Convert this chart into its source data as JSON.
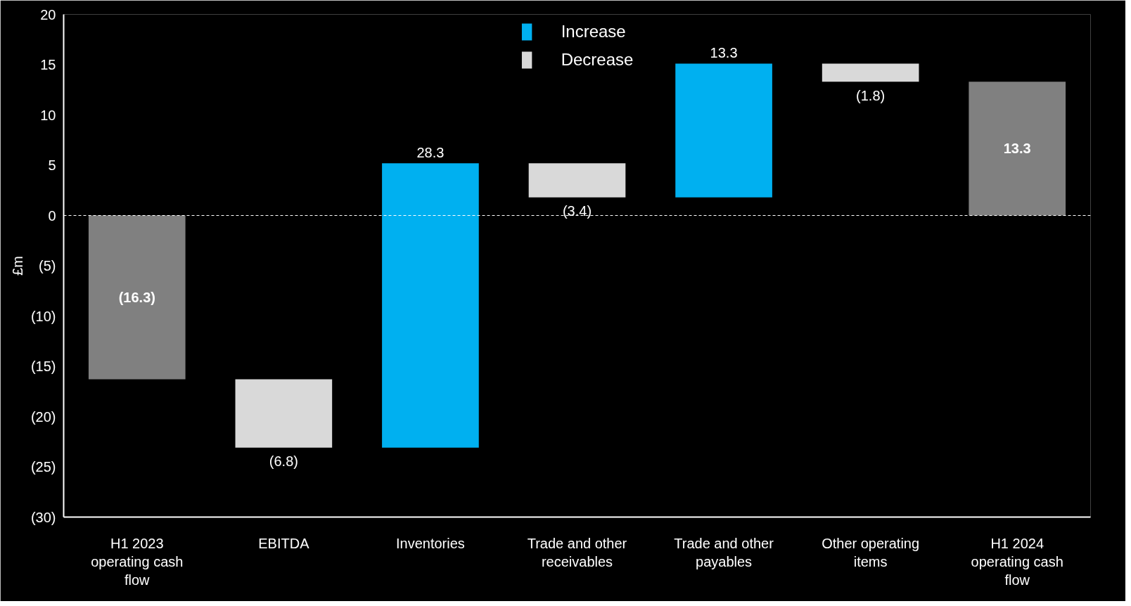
{
  "chart_data": {
    "type": "bar",
    "ylabel": "£m",
    "categories": [
      "H1 2023 operating cash flow",
      "EBITDA",
      "Inventories",
      "Trade and other receivables",
      "Trade and other payables",
      "Other operating items",
      "H1 2024 operating cash flow"
    ],
    "series": [
      {
        "color": "#808080",
        "base": [
          0,
          null,
          null,
          null,
          null,
          null,
          0
        ],
        "values": [
          -16.3,
          null,
          null,
          null,
          null,
          null,
          13.3
        ],
        "value_labels": [
          "(16.3)",
          null,
          null,
          null,
          null,
          null,
          "13.3"
        ]
      },
      {
        "name": "Increase",
        "color": "#00b0f0",
        "base": [
          null,
          null,
          -23.1,
          null,
          1.8,
          null,
          null
        ],
        "values": [
          null,
          null,
          28.3,
          null,
          13.3,
          null,
          null
        ],
        "value_labels": [
          null,
          null,
          "28.3",
          null,
          "13.3",
          null,
          null
        ]
      },
      {
        "name": "Decrease",
        "color": "#d9d9d9",
        "base": [
          null,
          -16.3,
          null,
          5.2,
          null,
          15.1,
          null
        ],
        "values": [
          null,
          -6.8,
          null,
          -3.4,
          null,
          -1.8,
          null
        ],
        "value_labels": [
          null,
          "(6.8)",
          null,
          "(3.4)",
          null,
          "(1.8)",
          null
        ]
      }
    ],
    "ylim": [
      -30,
      20
    ],
    "yticks": [
      20,
      15,
      10,
      5,
      0,
      {
        "value": -5,
        "label": "(5)"
      },
      {
        "value": -10,
        "label": "(10)"
      },
      {
        "value": -15,
        "label": "(15)"
      },
      {
        "value": -20,
        "label": "(20)"
      },
      {
        "value": -25,
        "label": "(25)"
      },
      {
        "value": -30,
        "label": "(30)"
      }
    ],
    "ref_lines": [
      {
        "axis": "y",
        "value": 0,
        "color": "#ffffff",
        "line_style": "dashed"
      }
    ],
    "grid": false,
    "legend": "top"
  }
}
